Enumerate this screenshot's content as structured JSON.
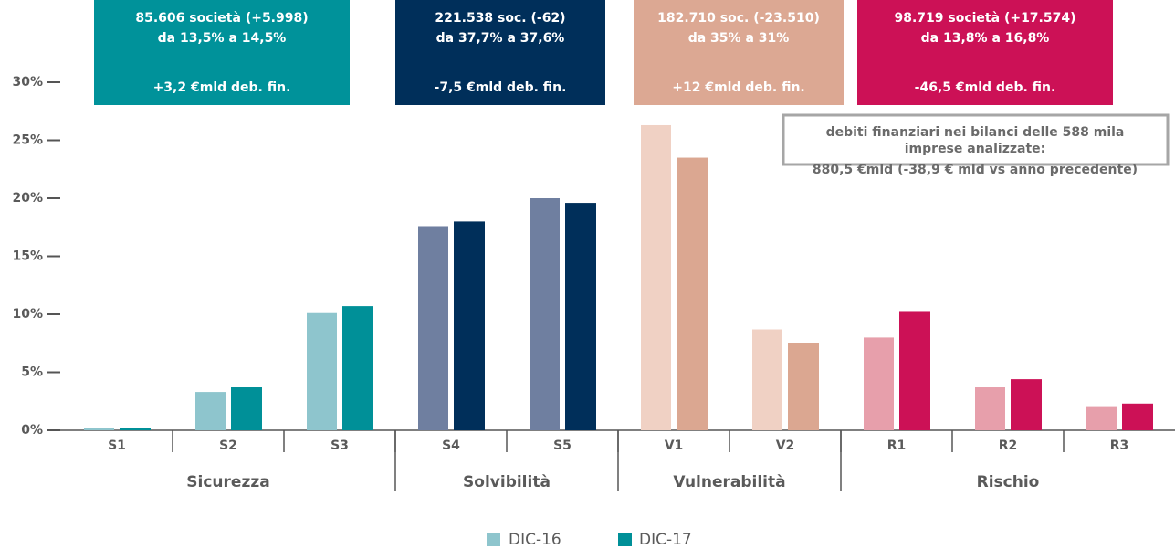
{
  "chart_data": {
    "type": "bar",
    "categories": [
      "S1",
      "S2",
      "S3",
      "S4",
      "S5",
      "V1",
      "V2",
      "R1",
      "R2",
      "R3"
    ],
    "groups": [
      {
        "label": "Sicurezza",
        "size": 3
      },
      {
        "label": "Solvibilità",
        "size": 2
      },
      {
        "label": "Vulnerabilità",
        "size": 2
      },
      {
        "label": "Rischio",
        "size": 3
      }
    ],
    "series": [
      {
        "name": "DIC-16",
        "color": "#8ec5cd",
        "colors": [
          "#8ec5cd",
          "#8ec5cd",
          "#8ec5cd",
          "#6f7fa0",
          "#6f7fa0",
          "#f0d1c4",
          "#f0d1c4",
          "#e79fab",
          "#e79fab",
          "#e79fab"
        ],
        "values": [
          0.2,
          3.3,
          10.1,
          17.6,
          20.0,
          26.3,
          8.7,
          8.0,
          3.7,
          2.0
        ]
      },
      {
        "name": "DIC-17",
        "color": "#009098",
        "colors": [
          "#009098",
          "#009098",
          "#009098",
          "#002f5a",
          "#002f5a",
          "#dba791",
          "#dba791",
          "#cc1156",
          "#cc1156",
          "#cc1156"
        ],
        "values": [
          0.2,
          3.7,
          10.7,
          18.0,
          19.6,
          23.5,
          7.5,
          10.2,
          4.4,
          2.3
        ]
      }
    ],
    "ylim": [
      0,
      30
    ],
    "yticks": [
      {
        "value": 0,
        "label": "0%"
      },
      {
        "value": 5,
        "label": "5%"
      },
      {
        "value": 10,
        "label": "10%"
      },
      {
        "value": 15,
        "label": "15%"
      },
      {
        "value": 20,
        "label": "20%"
      },
      {
        "value": 25,
        "label": "25%"
      },
      {
        "value": 30,
        "label": "30%"
      }
    ],
    "group_annotations": [
      {
        "color": "#00929a",
        "lines": [
          "85.606 società (+5.998)",
          "da 13,5% a 14,5%",
          "+3,2 €mld deb. fin."
        ]
      },
      {
        "color": "#002f5a",
        "lines": [
          "221.538 soc. (-62)",
          "da 37,7% a 37,6%",
          "-7,5 €mld deb. fin."
        ]
      },
      {
        "color": "#dca893",
        "lines": [
          "182.710 soc. (-23.510)",
          "da 35% a 31%",
          "+12 €mld deb. fin."
        ]
      },
      {
        "color": "#cc1156",
        "lines": [
          "98.719 società (+17.574)",
          "da 13,8% a 16,8%",
          "-46,5 €mld deb. fin."
        ]
      }
    ],
    "note": [
      "debiti finanziari nei bilanci delle 588 mila",
      "imprese analizzate:",
      "880,5 €mld (-38,9 € mld vs anno precedente)"
    ]
  }
}
